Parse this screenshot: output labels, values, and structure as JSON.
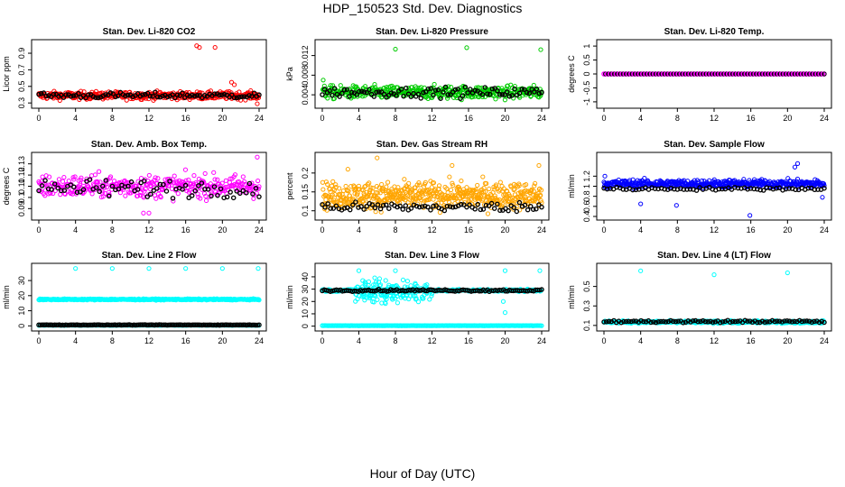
{
  "page": {
    "title": "HDP_150523  Std. Dev. Diagnostics",
    "xlabel": "Hour of Day (UTC)"
  },
  "chart_data": [
    {
      "type": "scatter",
      "title": "Stan. Dev. Li-820 CO2",
      "ylabel": "Licor ppm",
      "color": "#ff0000",
      "xlim": [
        0,
        24
      ],
      "xticks": [
        0,
        4,
        8,
        12,
        16,
        20,
        24
      ],
      "ylim": [
        0.28,
        1.02
      ],
      "yticks": [
        0.3,
        0.5,
        0.7,
        0.9
      ],
      "series": {
        "main": {
          "center": 0.39,
          "spread": 0.045,
          "n": 420
        },
        "overlay": {
          "center": 0.39,
          "spread": 0.035,
          "n": 90
        },
        "outliers": [
          [
            17.2,
            0.99
          ],
          [
            17.5,
            0.97
          ],
          [
            19.2,
            0.97
          ],
          [
            21.0,
            0.55
          ],
          [
            21.3,
            0.52
          ],
          [
            23.8,
            0.29
          ]
        ]
      }
    },
    {
      "type": "scatter",
      "title": "Stan. Dev. Li-820 Pressure",
      "ylabel": "kPa",
      "color": "#00cc00",
      "xlim": [
        0,
        24
      ],
      "xticks": [
        0,
        4,
        8,
        12,
        16,
        20,
        24
      ],
      "ylim": [
        0.002,
        0.0145
      ],
      "yticks": [
        0.004,
        0.008,
        0.012
      ],
      "series": {
        "main": {
          "center": 0.0045,
          "spread": 0.0013,
          "n": 420
        },
        "overlay": {
          "center": 0.0045,
          "spread": 0.001,
          "n": 90
        },
        "outliers": [
          [
            8.0,
            0.0133
          ],
          [
            15.8,
            0.0136
          ],
          [
            23.9,
            0.0132
          ],
          [
            0.1,
            0.007
          ]
        ]
      }
    },
    {
      "type": "scatter",
      "title": "Stan. Dev. Li-820 Temp.",
      "ylabel": "degrees C",
      "color": "#ff00ff",
      "xlim": [
        0,
        24
      ],
      "xticks": [
        0,
        4,
        8,
        12,
        16,
        20,
        24
      ],
      "ylim": [
        -1.1,
        1.1
      ],
      "yticks": [
        -1.0,
        -0.5,
        0.0,
        0.5,
        1.0
      ],
      "series": {
        "main": {
          "center": 0.0,
          "spread": 0.0,
          "n": 100
        },
        "overlay": {
          "center": 0.0,
          "spread": 0.0,
          "n": 100
        },
        "outliers": []
      }
    },
    {
      "type": "scatter",
      "title": "Stan. Dev. Amb. Box Temp.",
      "ylabel": "degrees C",
      "color": "#ff00ff",
      "xlim": [
        0,
        24
      ],
      "xticks": [
        0,
        4,
        8,
        12,
        16,
        20,
        24
      ],
      "ylim": [
        0.083,
        0.137
      ],
      "yticks": [
        0.09,
        0.1,
        0.11,
        0.12,
        0.13
      ],
      "series": {
        "main": {
          "center": 0.11,
          "spread": 0.01,
          "n": 360
        },
        "overlay": {
          "center": 0.108,
          "spread": 0.008,
          "n": 70
        },
        "outliers": [
          [
            23.8,
            0.136
          ],
          [
            12.0,
            0.086
          ],
          [
            11.4,
            0.086
          ]
        ]
      }
    },
    {
      "type": "scatter",
      "title": "Stan. Dev. Gas Stream RH",
      "ylabel": "percent",
      "color": "#ffa500",
      "xlim": [
        0,
        24
      ],
      "xticks": [
        0,
        4,
        8,
        12,
        16,
        20,
        24
      ],
      "ylim": [
        0.085,
        0.245
      ],
      "yticks": [
        0.1,
        0.15,
        0.2
      ],
      "series": {
        "main": {
          "center": 0.14,
          "spread": 0.035,
          "n": 560
        },
        "overlay": {
          "center": 0.11,
          "spread": 0.012,
          "n": 80
        },
        "outliers": [
          [
            6.0,
            0.24
          ],
          [
            14.2,
            0.22
          ],
          [
            23.7,
            0.22
          ],
          [
            2.8,
            0.21
          ]
        ]
      }
    },
    {
      "type": "scatter",
      "title": "Stan. Dev. Sample Flow",
      "ylabel": "ml/min",
      "color": "#0000ff",
      "xlim": [
        0,
        24
      ],
      "xticks": [
        0,
        4,
        8,
        12,
        16,
        20,
        24
      ],
      "ylim": [
        0.4,
        1.6
      ],
      "yticks": [
        0.4,
        0.6,
        0.8,
        1.0,
        1.2
      ],
      "series": {
        "main": {
          "center": 1.05,
          "spread": 0.08,
          "n": 480
        },
        "overlay": {
          "center": 0.95,
          "spread": 0.03,
          "n": 70
        },
        "outliers": [
          [
            4.0,
            0.65
          ],
          [
            7.9,
            0.62
          ],
          [
            15.9,
            0.42
          ],
          [
            21.1,
            1.45
          ],
          [
            20.8,
            1.38
          ],
          [
            0.1,
            1.2
          ],
          [
            23.8,
            0.78
          ]
        ]
      }
    },
    {
      "type": "scatter",
      "title": "Stan. Dev. Line 2 Flow",
      "ylabel": "ml/min",
      "color": "#00ffff",
      "xlim": [
        0,
        24
      ],
      "xticks": [
        0,
        4,
        8,
        12,
        16,
        20,
        24
      ],
      "ylim": [
        -1,
        39
      ],
      "yticks": [
        0,
        10,
        20,
        30
      ],
      "series": {
        "main": {
          "center": 17.5,
          "spread": 0.4,
          "n": 420
        },
        "overlay": {
          "center": 0.6,
          "spread": 0.15,
          "n": 140
        },
        "floor": {
          "center": 0.4,
          "spread": 0.1,
          "n": 160
        },
        "outliers": [
          [
            4.0,
            38
          ],
          [
            8.0,
            38
          ],
          [
            12.0,
            38
          ],
          [
            16.0,
            38
          ],
          [
            20.0,
            38
          ],
          [
            23.9,
            38
          ]
        ]
      }
    },
    {
      "type": "scatter",
      "title": "Stan. Dev. Line 3 Flow",
      "ylabel": "ml/min",
      "color": "#00ffff",
      "xlim": [
        0,
        24
      ],
      "xticks": [
        0,
        4,
        8,
        12,
        16,
        20,
        24
      ],
      "ylim": [
        -1,
        48
      ],
      "yticks": [
        0,
        10,
        20,
        30,
        40
      ],
      "series": {
        "main": {
          "center": 29,
          "spread": 1.0,
          "n": 280
        },
        "burst": {
          "xrange": [
            3.5,
            12
          ],
          "center": 28,
          "spread": 9,
          "n": 160
        },
        "overlay": {
          "center": 29,
          "spread": 0.8,
          "n": 110
        },
        "floor": {
          "center": 0.4,
          "spread": 0.1,
          "n": 200
        },
        "outliers": [
          [
            4.0,
            45
          ],
          [
            8.0,
            45
          ],
          [
            20.0,
            45
          ],
          [
            23.8,
            45
          ],
          [
            20.0,
            11
          ],
          [
            19.8,
            20
          ]
        ]
      }
    },
    {
      "type": "scatter",
      "title": "Stan. Dev. Line 4 (LT) Flow",
      "ylabel": "ml/min",
      "color": "#00ffff",
      "xlim": [
        0,
        24
      ],
      "xticks": [
        0,
        4,
        8,
        12,
        16,
        20,
        24
      ],
      "ylim": [
        0.08,
        0.7
      ],
      "yticks": [
        0.1,
        0.3,
        0.5
      ],
      "series": {
        "main": {
          "center": 0.135,
          "spread": 0.012,
          "n": 420
        },
        "overlay": {
          "center": 0.14,
          "spread": 0.012,
          "n": 90
        },
        "outliers": [
          [
            4.0,
            0.66
          ],
          [
            12.0,
            0.62
          ],
          [
            20.0,
            0.64
          ]
        ]
      }
    }
  ]
}
